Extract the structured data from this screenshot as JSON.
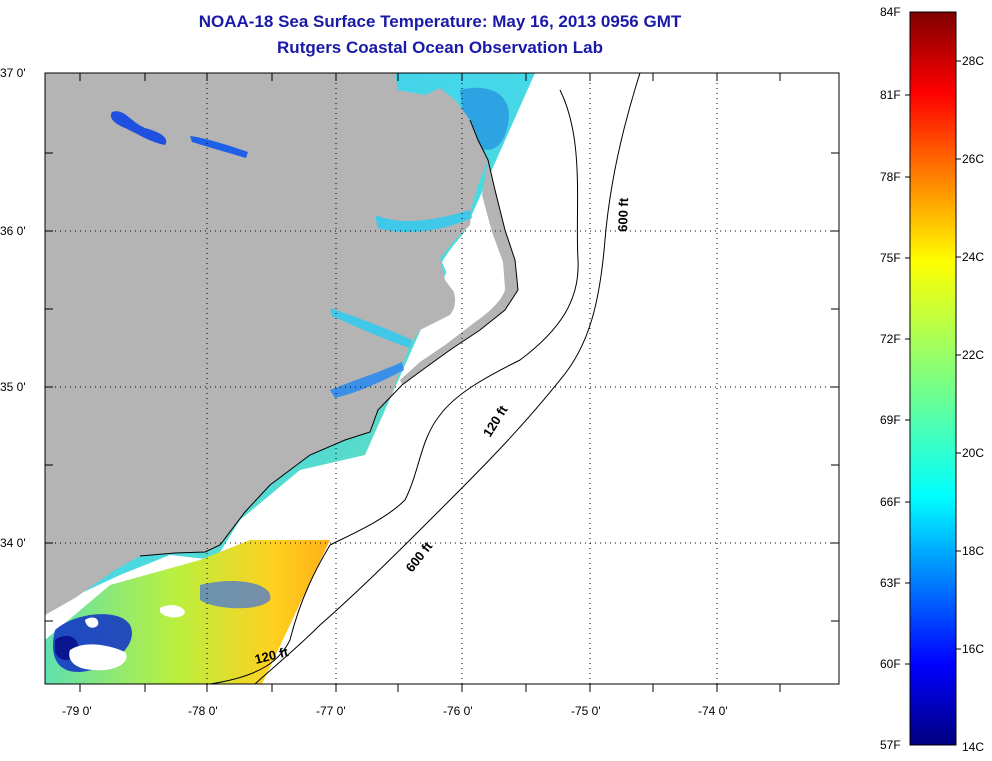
{
  "title": {
    "line1": "NOAA-18 Sea Surface Temperature:  May 16, 2013 0956 GMT",
    "line2": "Rutgers Coastal Ocean Observation Lab"
  },
  "map": {
    "lat_labels": [
      "37 0'",
      "36 0'",
      "35 0'",
      "34 0'"
    ],
    "lon_labels": [
      "-79 0'",
      "-78 0'",
      "-77 0'",
      "-76 0'",
      "-75 0'",
      "-74 0'"
    ],
    "contour_labels": {
      "c120_north": "120 ft",
      "c600_north": "600 ft",
      "c600_south": "600 ft",
      "c120_south": "120 ft"
    },
    "colors": {
      "land": "#b4b4b4",
      "no_data": "#ffffff",
      "grid": "#000000"
    }
  },
  "colorbar": {
    "fahrenheit_labels": [
      "84F",
      "81F",
      "78F",
      "75F",
      "72F",
      "69F",
      "66F",
      "63F",
      "60F",
      "57F"
    ],
    "celsius_labels": [
      "28C",
      "26C",
      "24C",
      "22C",
      "20C",
      "18C",
      "16C",
      "14C"
    ],
    "range_f": [
      57,
      84
    ],
    "range_c": [
      14,
      29
    ],
    "colormap": "jet"
  }
}
